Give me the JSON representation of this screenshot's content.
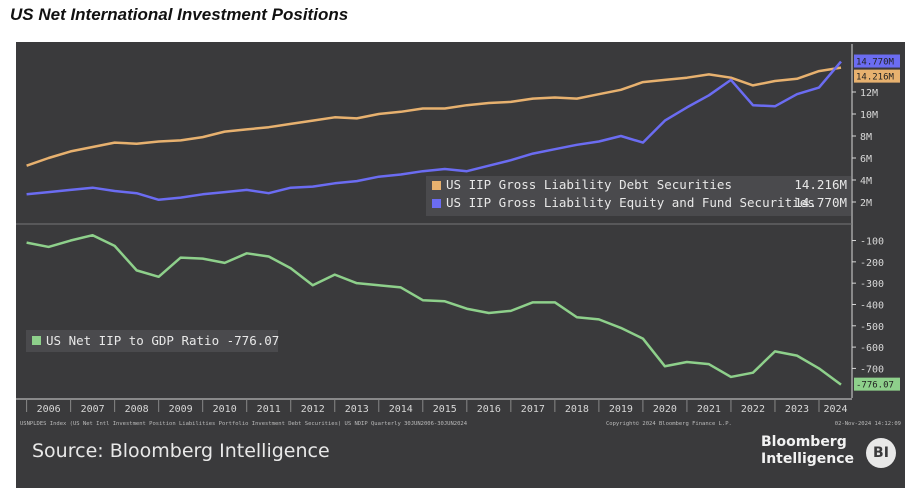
{
  "title": "US Net International Investment Positions",
  "footnote_left": "USNPLDES Index (US Net Intl Investment Position Liabilities Portfolio Investment Debt Securities) US NDIP Quarterly 30JUN2006-30JUN2024",
  "footnote_right": "Copyright© 2024 Bloomberg Finance L.P.",
  "footnote_date": "02-Nov-2024 14:12:09",
  "source": "Source: Bloomberg Intelligence",
  "brand": {
    "line1": "Bloomberg",
    "line2": "Intelligence",
    "badge": "BI"
  },
  "colors": {
    "background": "#3a3a3c",
    "debt": "#e7b16f",
    "equity": "#6b6cf2",
    "net": "#8ed08b",
    "axis": "#d8d8d8",
    "grid": "#555558"
  },
  "chart_data": [
    {
      "type": "line",
      "x_label_ticks": [
        "2006",
        "2007",
        "2008",
        "2009",
        "2010",
        "2011",
        "2012",
        "2013",
        "2014",
        "2015",
        "2016",
        "2017",
        "2018",
        "2019",
        "2020",
        "2021",
        "2022",
        "2023",
        "2024"
      ],
      "yticks": [
        2,
        4,
        6,
        8,
        10,
        12
      ],
      "ytick_labels": [
        "2M",
        "4M",
        "6M",
        "8M",
        "10M",
        "12M"
      ],
      "ylim": [
        0,
        16
      ],
      "grid": false,
      "legend_position": "bottom-right",
      "series": [
        {
          "name": "US IIP Gross Liability Debt Securities",
          "last_value_label": "14.216M",
          "color": "#e7b16f",
          "x": [
            2006.0,
            2006.5,
            2007.0,
            2007.5,
            2008.0,
            2008.5,
            2009.0,
            2009.5,
            2010.0,
            2010.5,
            2011.0,
            2011.5,
            2012.0,
            2012.5,
            2013.0,
            2013.5,
            2014.0,
            2014.5,
            2015.0,
            2015.5,
            2016.0,
            2016.5,
            2017.0,
            2017.5,
            2018.0,
            2018.5,
            2019.0,
            2019.5,
            2020.0,
            2020.5,
            2021.0,
            2021.5,
            2022.0,
            2022.5,
            2023.0,
            2023.5,
            2024.0,
            2024.5
          ],
          "y": [
            5.3,
            6.0,
            6.6,
            7.0,
            7.4,
            7.3,
            7.5,
            7.6,
            7.9,
            8.4,
            8.6,
            8.8,
            9.1,
            9.4,
            9.7,
            9.6,
            10.0,
            10.2,
            10.5,
            10.5,
            10.8,
            11.0,
            11.1,
            11.4,
            11.5,
            11.4,
            11.8,
            12.2,
            12.9,
            13.1,
            13.3,
            13.6,
            13.3,
            12.6,
            13.0,
            13.2,
            13.9,
            14.216
          ]
        },
        {
          "name": "US IIP Gross Liability Equity and Fund Securities",
          "last_value_label": "14.770M",
          "color": "#6b6cf2",
          "x": [
            2006.0,
            2006.5,
            2007.0,
            2007.5,
            2008.0,
            2008.5,
            2009.0,
            2009.5,
            2010.0,
            2010.5,
            2011.0,
            2011.5,
            2012.0,
            2012.5,
            2013.0,
            2013.5,
            2014.0,
            2014.5,
            2015.0,
            2015.5,
            2016.0,
            2016.5,
            2017.0,
            2017.5,
            2018.0,
            2018.5,
            2019.0,
            2019.5,
            2020.0,
            2020.5,
            2021.0,
            2021.5,
            2022.0,
            2022.5,
            2023.0,
            2023.5,
            2024.0,
            2024.5
          ],
          "y": [
            2.7,
            2.9,
            3.1,
            3.3,
            3.0,
            2.8,
            2.2,
            2.4,
            2.7,
            2.9,
            3.1,
            2.8,
            3.3,
            3.4,
            3.7,
            3.9,
            4.3,
            4.5,
            4.8,
            5.0,
            4.8,
            5.3,
            5.8,
            6.4,
            6.8,
            7.2,
            7.5,
            8.0,
            7.4,
            9.4,
            10.6,
            11.7,
            13.1,
            10.8,
            10.7,
            11.8,
            12.4,
            14.77
          ]
        }
      ]
    },
    {
      "type": "line",
      "x_label_ticks": [
        "2006",
        "2007",
        "2008",
        "2009",
        "2010",
        "2011",
        "2012",
        "2013",
        "2014",
        "2015",
        "2016",
        "2017",
        "2018",
        "2019",
        "2020",
        "2021",
        "2022",
        "2023",
        "2024"
      ],
      "yticks": [
        -100,
        -200,
        -300,
        -400,
        -500,
        -600,
        -700
      ],
      "ylim": [
        -820,
        -60
      ],
      "grid": false,
      "legend_position": "bottom-left",
      "series": [
        {
          "name": "US Net IIP to GDP Ratio",
          "last_value_label": "-776.07",
          "color": "#8ed08b",
          "x": [
            2006.0,
            2006.5,
            2007.0,
            2007.5,
            2008.0,
            2008.5,
            2009.0,
            2009.5,
            2010.0,
            2010.5,
            2011.0,
            2011.5,
            2012.0,
            2012.5,
            2013.0,
            2013.5,
            2014.0,
            2014.5,
            2015.0,
            2015.5,
            2016.0,
            2016.5,
            2017.0,
            2017.5,
            2018.0,
            2018.5,
            2019.0,
            2019.5,
            2020.0,
            2020.5,
            2021.0,
            2021.5,
            2022.0,
            2022.5,
            2023.0,
            2023.5,
            2024.0,
            2024.5
          ],
          "y": [
            -110,
            -130,
            -100,
            -75,
            -125,
            -240,
            -270,
            -180,
            -185,
            -205,
            -160,
            -175,
            -230,
            -310,
            -260,
            -300,
            -310,
            -320,
            -380,
            -385,
            -420,
            -440,
            -430,
            -390,
            -390,
            -460,
            -470,
            -510,
            -560,
            -690,
            -670,
            -680,
            -740,
            -720,
            -620,
            -640,
            -700,
            -776.07
          ]
        }
      ]
    }
  ]
}
